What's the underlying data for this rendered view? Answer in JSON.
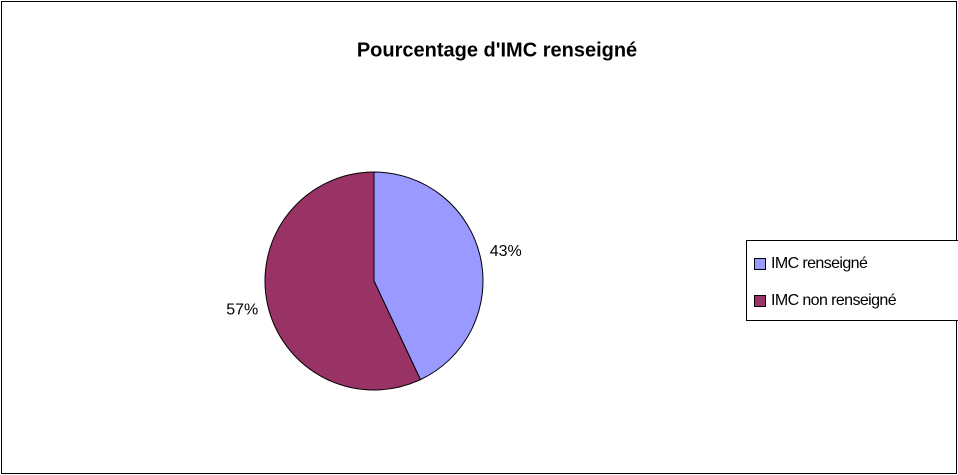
{
  "chart_data": {
    "type": "pie",
    "title": "Pourcentage d'IMC renseigné",
    "categories": [
      "IMC renseigné",
      "IMC non renseigné"
    ],
    "values": [
      43,
      57
    ],
    "value_labels": [
      "43%",
      "57%"
    ],
    "colors": [
      "#9999ff",
      "#993366"
    ],
    "legend": "right"
  }
}
